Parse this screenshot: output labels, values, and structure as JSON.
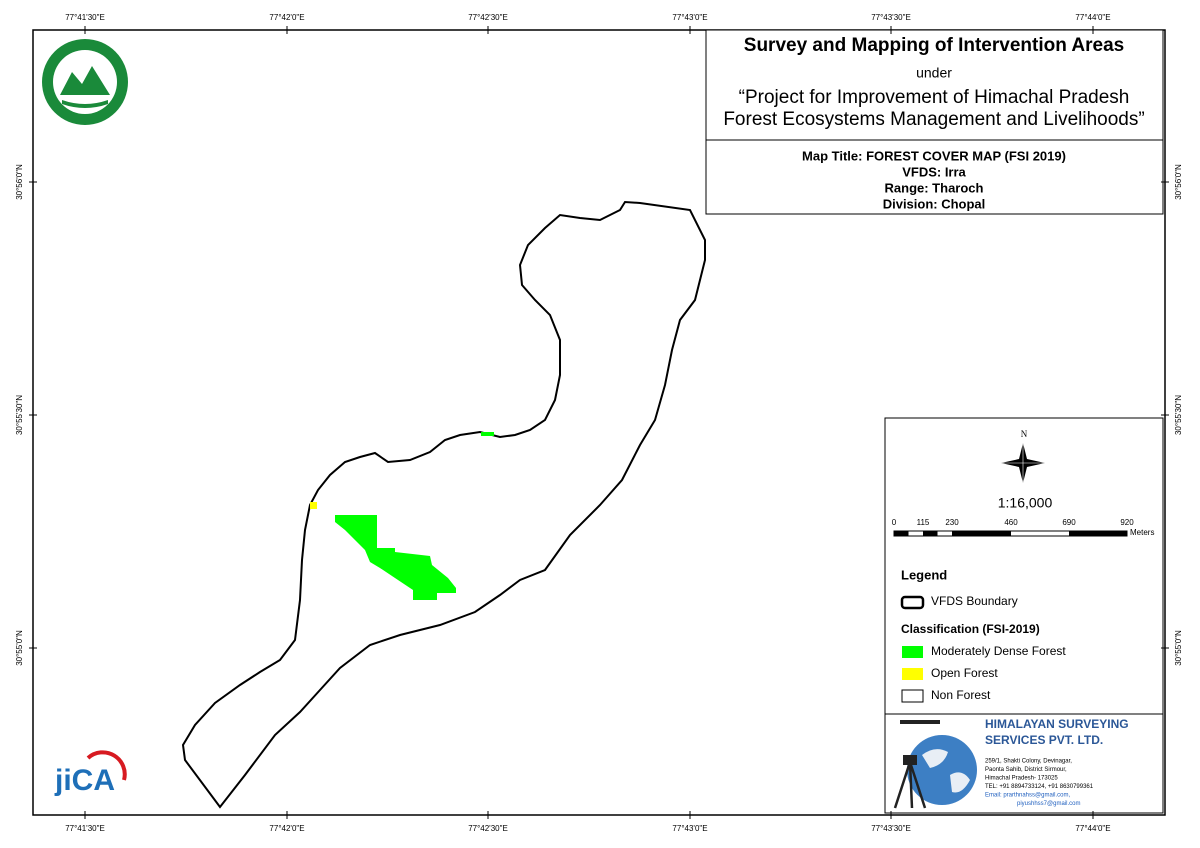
{
  "grid": {
    "lon_labels": [
      "77°41'30\"E",
      "77°42'0\"E",
      "77°42'30\"E",
      "77°43'0\"E",
      "77°43'30\"E",
      "77°44'0\"E"
    ],
    "lat_labels": [
      "30°56'0\"N",
      "30°55'30\"N",
      "30°55'0\"N"
    ]
  },
  "header": {
    "title": "Survey and Mapping of Intervention Areas",
    "under": "under",
    "project": [
      "“Project for Improvement of Himachal Pradesh",
      "Forest Ecosystems Management and Livelihoods”"
    ],
    "map_info": [
      "Map Title: FOREST COVER MAP (FSI 2019)",
      "VFDS: Irra",
      "Range: Tharoch",
      "Division: Chopal"
    ]
  },
  "north": "N",
  "scale": {
    "ratio": "1:16,000",
    "labels": [
      "0",
      "115",
      "230",
      "460",
      "690",
      "920"
    ],
    "unit": "Meters"
  },
  "legend": {
    "title": "Legend",
    "boundary": "VFDS Boundary",
    "classification_title": "Classification (FSI-2019)",
    "items": [
      {
        "label": "Moderately Dense Forest",
        "color": "#00ff00"
      },
      {
        "label": "Open Forest",
        "color": "#ffff00"
      },
      {
        "label": "Non Forest",
        "color": "#ffffff"
      }
    ]
  },
  "company": {
    "name": [
      "HIMALAYAN SURVEYING",
      "SERVICES PVT. LTD."
    ],
    "address": [
      "259/1, Shakti Colony, Devinagar,",
      "Paonta Sahib, District Sirmour,",
      "Himachal Pradesh- 173025",
      "TEL: +91 8894733124, +91 8630799361",
      "Email: prarthnahss@gmail.com,",
      "piyushhss7@gmail.com"
    ]
  },
  "logos": {
    "jica": "jiCA"
  }
}
